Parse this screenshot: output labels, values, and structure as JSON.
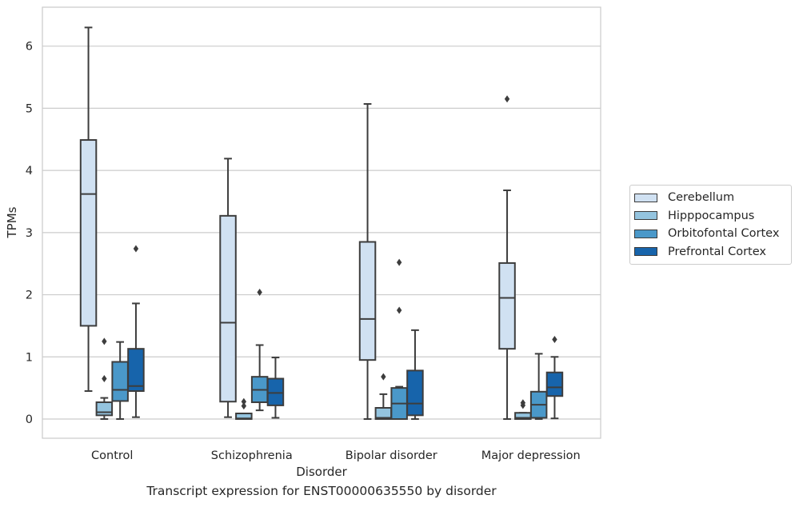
{
  "caption": "Transcript expression for ENST00000635550 by disorder",
  "chart_data": {
    "type": "boxplot",
    "xlabel": "Disorder",
    "ylabel": "TPMs",
    "ylim": [
      -0.3,
      6.63
    ],
    "yticks": [
      0,
      1,
      2,
      3,
      4,
      5,
      6
    ],
    "grid": "horizontal",
    "legend_position": "right",
    "categories": [
      "Control",
      "Schizophrenia",
      "Bipolar disorder",
      "Major depression"
    ],
    "series": [
      {
        "name": "Cerebellum",
        "color": "#d0e1f2",
        "boxes": [
          {
            "whisker_low": 0.45,
            "q1": 1.5,
            "median": 3.62,
            "q3": 4.49,
            "whisker_high": 6.3,
            "outliers": []
          },
          {
            "whisker_low": 0.03,
            "q1": 0.28,
            "median": 1.55,
            "q3": 3.27,
            "whisker_high": 4.19,
            "outliers": []
          },
          {
            "whisker_low": 0.0,
            "q1": 0.95,
            "median": 1.61,
            "q3": 2.85,
            "whisker_high": 5.07,
            "outliers": []
          },
          {
            "whisker_low": 0.0,
            "q1": 1.13,
            "median": 1.95,
            "q3": 2.51,
            "whisker_high": 3.68,
            "outliers": [
              5.15
            ]
          }
        ]
      },
      {
        "name": "Hipppocampus",
        "color": "#94c4df",
        "boxes": [
          {
            "whisker_low": 0.0,
            "q1": 0.06,
            "median": 0.11,
            "q3": 0.27,
            "whisker_high": 0.34,
            "outliers": [
              0.65,
              1.25
            ]
          },
          {
            "whisker_low": 0.0,
            "q1": 0.0,
            "median": 0.01,
            "q3": 0.09,
            "whisker_high": 0.09,
            "outliers": [
              0.21,
              0.28
            ]
          },
          {
            "whisker_low": 0.0,
            "q1": 0.0,
            "median": 0.02,
            "q3": 0.18,
            "whisker_high": 0.4,
            "outliers": [
              0.68
            ]
          },
          {
            "whisker_low": 0.0,
            "q1": 0.0,
            "median": 0.02,
            "q3": 0.1,
            "whisker_high": 0.1,
            "outliers": [
              0.22,
              0.26
            ]
          }
        ]
      },
      {
        "name": "Orbitofontal Cortex",
        "color": "#4a98c9",
        "boxes": [
          {
            "whisker_low": 0.0,
            "q1": 0.29,
            "median": 0.47,
            "q3": 0.92,
            "whisker_high": 1.24,
            "outliers": []
          },
          {
            "whisker_low": 0.14,
            "q1": 0.27,
            "median": 0.47,
            "q3": 0.68,
            "whisker_high": 1.19,
            "outliers": [
              2.04
            ]
          },
          {
            "whisker_low": 0.0,
            "q1": 0.0,
            "median": 0.25,
            "q3": 0.5,
            "whisker_high": 0.52,
            "outliers": [
              1.75,
              2.52
            ]
          },
          {
            "whisker_low": 0.0,
            "q1": 0.02,
            "median": 0.23,
            "q3": 0.44,
            "whisker_high": 1.05,
            "outliers": []
          }
        ]
      },
      {
        "name": "Prefrontal Cortex",
        "color": "#1764ab",
        "boxes": [
          {
            "whisker_low": 0.03,
            "q1": 0.45,
            "median": 0.53,
            "q3": 1.13,
            "whisker_high": 1.86,
            "outliers": [
              2.74
            ]
          },
          {
            "whisker_low": 0.02,
            "q1": 0.22,
            "median": 0.42,
            "q3": 0.65,
            "whisker_high": 0.99,
            "outliers": []
          },
          {
            "whisker_low": 0.0,
            "q1": 0.06,
            "median": 0.25,
            "q3": 0.78,
            "whisker_high": 1.43,
            "outliers": []
          },
          {
            "whisker_low": 0.01,
            "q1": 0.37,
            "median": 0.51,
            "q3": 0.75,
            "whisker_high": 1.0,
            "outliers": [
              1.28
            ]
          }
        ]
      }
    ]
  }
}
